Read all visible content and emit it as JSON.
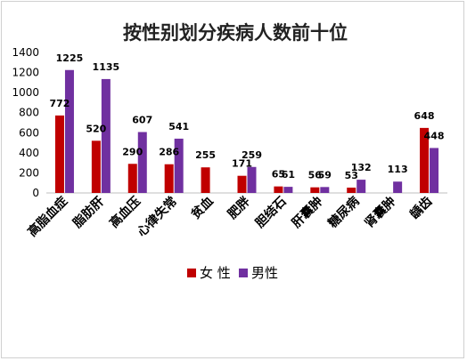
{
  "chart_data": {
    "type": "bar",
    "title": "按性别划分疾病人数前十位",
    "xlabel": "",
    "ylabel": "",
    "ylim": [
      0,
      1400
    ],
    "yticks": [
      0,
      200,
      400,
      600,
      800,
      1000,
      1200,
      1400
    ],
    "categories": [
      "高脂血症",
      "脂肪肝",
      "高血压",
      "心律失常",
      "贫血",
      "肥胖",
      "胆结石",
      "肝囊肿",
      "糖尿病",
      "肾囊肿",
      "龋齿"
    ],
    "series": [
      {
        "name": "女  性",
        "color": "#c00000",
        "values": [
          772,
          520,
          290,
          286,
          255,
          171,
          65,
          56,
          53,
          null,
          648
        ]
      },
      {
        "name": "男性",
        "color": "#7030a0",
        "values": [
          1225,
          1135,
          607,
          541,
          null,
          259,
          61,
          59,
          132,
          113,
          448
        ]
      }
    ],
    "grid": false,
    "legend_position": "bottom"
  }
}
